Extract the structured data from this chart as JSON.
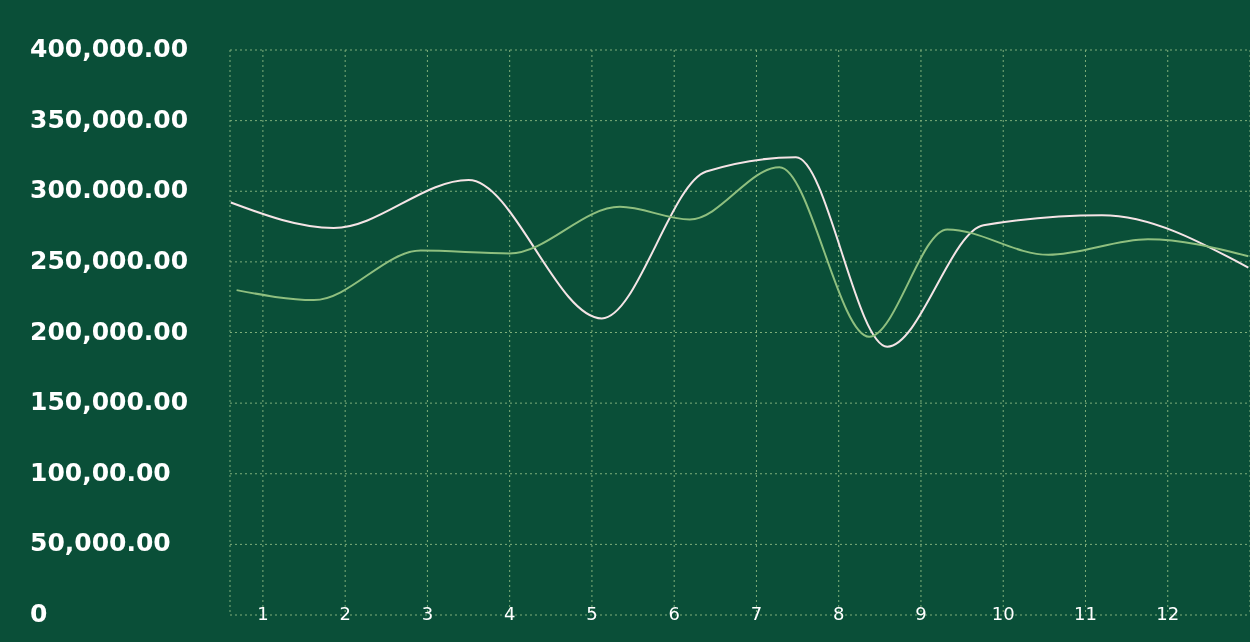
{
  "chart_data": {
    "type": "line",
    "xlim": [
      0.6,
      13
    ],
    "xticks": [
      1,
      2,
      3,
      4,
      5,
      6,
      7,
      8,
      9,
      10,
      11,
      12
    ],
    "ylim": [
      0,
      400000
    ],
    "yticks": [
      {
        "value": 0,
        "label": "0"
      },
      {
        "value": 50000,
        "label": "50,000.00"
      },
      {
        "value": 100000,
        "label": "100,00.00"
      },
      {
        "value": 150000,
        "label": "150,000.00"
      },
      {
        "value": 200000,
        "label": "200,000.00"
      },
      {
        "value": 250000,
        "label": "250,000.00"
      },
      {
        "value": 300000,
        "label": "300.000.00"
      },
      {
        "value": 350000,
        "label": "350,000.00"
      },
      {
        "value": 400000,
        "label": "400,000.00"
      }
    ],
    "grid": true,
    "marker": "none",
    "line_style": "solid",
    "series": [
      {
        "color": "#f5e4e6",
        "x": [
          0.61,
          1.86,
          3.5,
          5.12,
          6.39,
          7.48,
          8.59,
          9.76,
          11.2,
          12.98
        ],
        "values": [
          292000,
          274000,
          308000,
          210000,
          314000,
          324000,
          190000,
          276000,
          283000,
          246000
        ]
      },
      {
        "color": "#8fbf7f",
        "x": [
          0.68,
          1.62,
          2.92,
          4.0,
          5.34,
          6.19,
          7.28,
          8.37,
          9.32,
          10.55,
          11.76,
          12.98
        ],
        "values": [
          230000,
          223000,
          258000,
          256000,
          289000,
          280000,
          317000,
          197000,
          273000,
          255000,
          266000,
          254000
        ]
      }
    ]
  }
}
